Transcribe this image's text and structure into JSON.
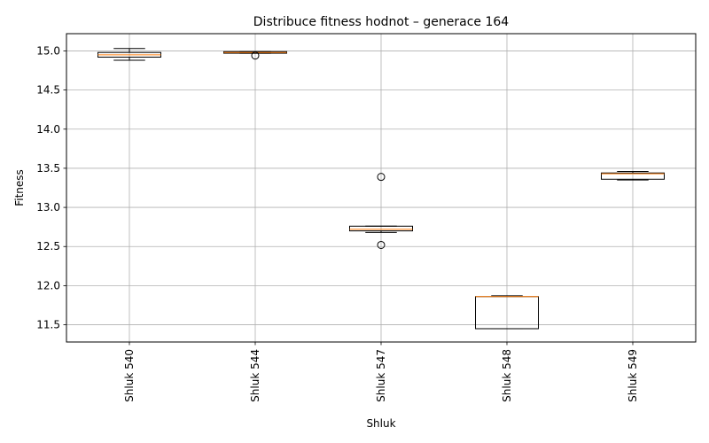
{
  "chart_data": {
    "type": "boxplot",
    "title": "Distribuce fitness hodnot – generace 164",
    "xlabel": "Shluk",
    "ylabel": "Fitness",
    "ylim": [
      11.28,
      15.22
    ],
    "yticks": [
      11.5,
      12.0,
      12.5,
      13.0,
      13.5,
      14.0,
      14.5,
      15.0
    ],
    "grid": true,
    "categories": [
      "Shluk 540",
      "Shluk 544",
      "Shluk 547",
      "Shluk 548",
      "Shluk 549"
    ],
    "boxes": [
      {
        "whisker_low": 14.88,
        "q1": 14.92,
        "median": 14.95,
        "q3": 14.98,
        "whisker_high": 15.03,
        "outliers": []
      },
      {
        "whisker_low": 14.97,
        "q1": 14.97,
        "median": 14.98,
        "q3": 14.99,
        "whisker_high": 14.99,
        "outliers": [
          14.94
        ]
      },
      {
        "whisker_low": 12.68,
        "q1": 12.7,
        "median": 12.72,
        "q3": 12.76,
        "whisker_high": 12.76,
        "outliers": [
          13.39,
          12.52
        ]
      },
      {
        "whisker_low": 11.45,
        "q1": 11.45,
        "median": 11.86,
        "q3": 11.86,
        "whisker_high": 11.87,
        "outliers": []
      },
      {
        "whisker_low": 13.35,
        "q1": 13.36,
        "median": 13.43,
        "q3": 13.44,
        "whisker_high": 13.46,
        "outliers": []
      }
    ],
    "colors": {
      "box": "#000000",
      "median": "#ff7f0e",
      "grid": "#b0b0b0"
    }
  }
}
